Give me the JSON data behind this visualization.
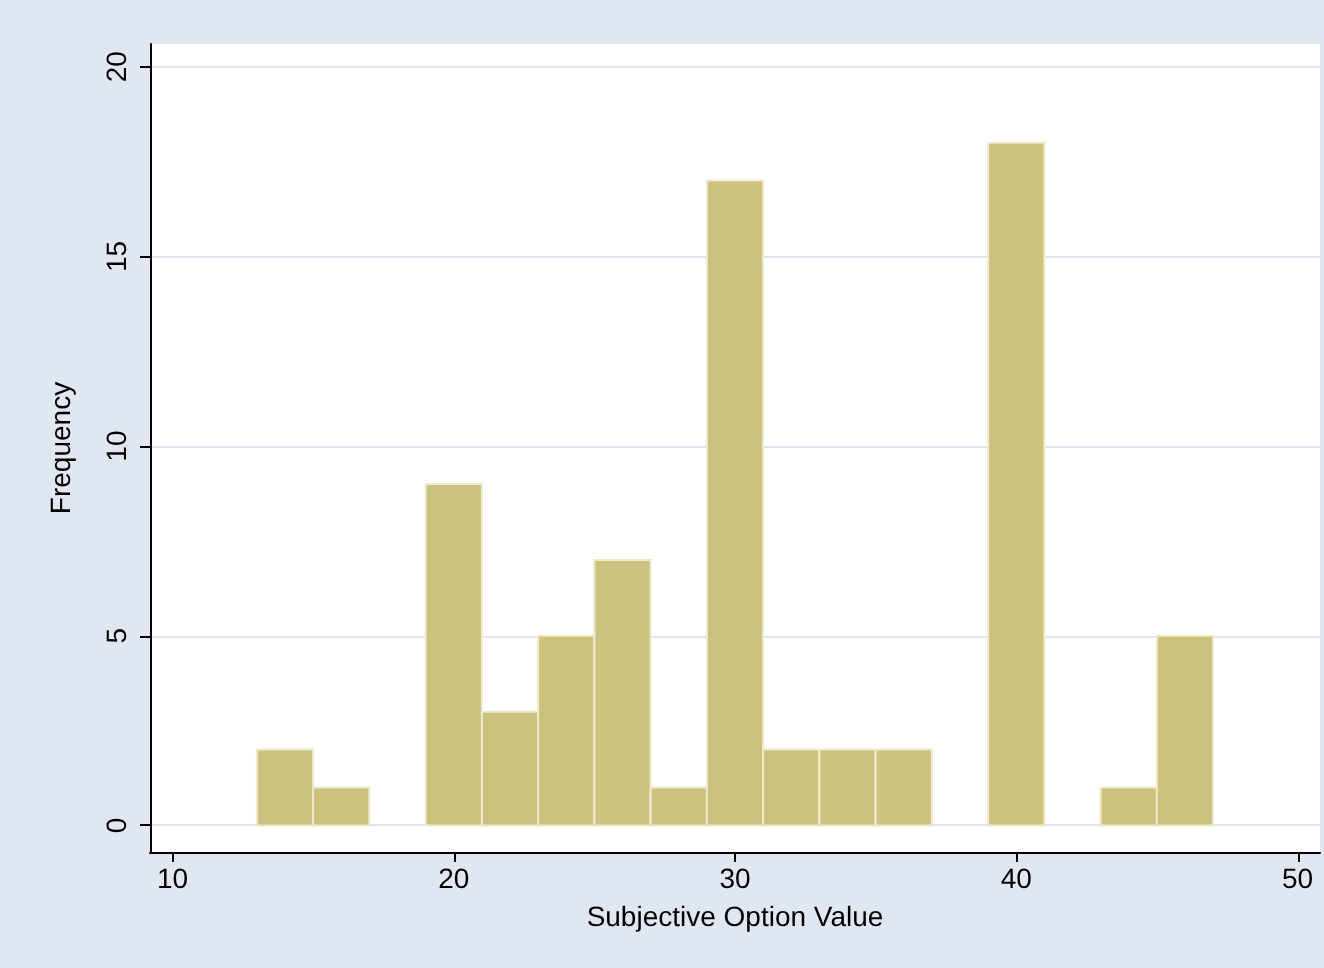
{
  "chart_data": {
    "type": "histogram",
    "xlabel": "Subjective Option Value",
    "ylabel": "Frequency",
    "bins": [
      13,
      15,
      17,
      19,
      21,
      23,
      25,
      27,
      29,
      31,
      33,
      35,
      37,
      39,
      41,
      43,
      45,
      47
    ],
    "values": [
      2,
      1,
      0,
      9,
      3,
      5,
      7,
      1,
      17,
      2,
      2,
      2,
      0,
      18,
      0,
      1,
      5
    ],
    "color": "#cbc27f",
    "xlim": [
      9.2,
      50.8
    ],
    "ylim": [
      -0.7,
      20.6
    ],
    "xticks": [
      10,
      20,
      30,
      40,
      50
    ],
    "yticks": [
      0,
      5,
      10,
      15,
      20
    ],
    "grid": "y"
  }
}
